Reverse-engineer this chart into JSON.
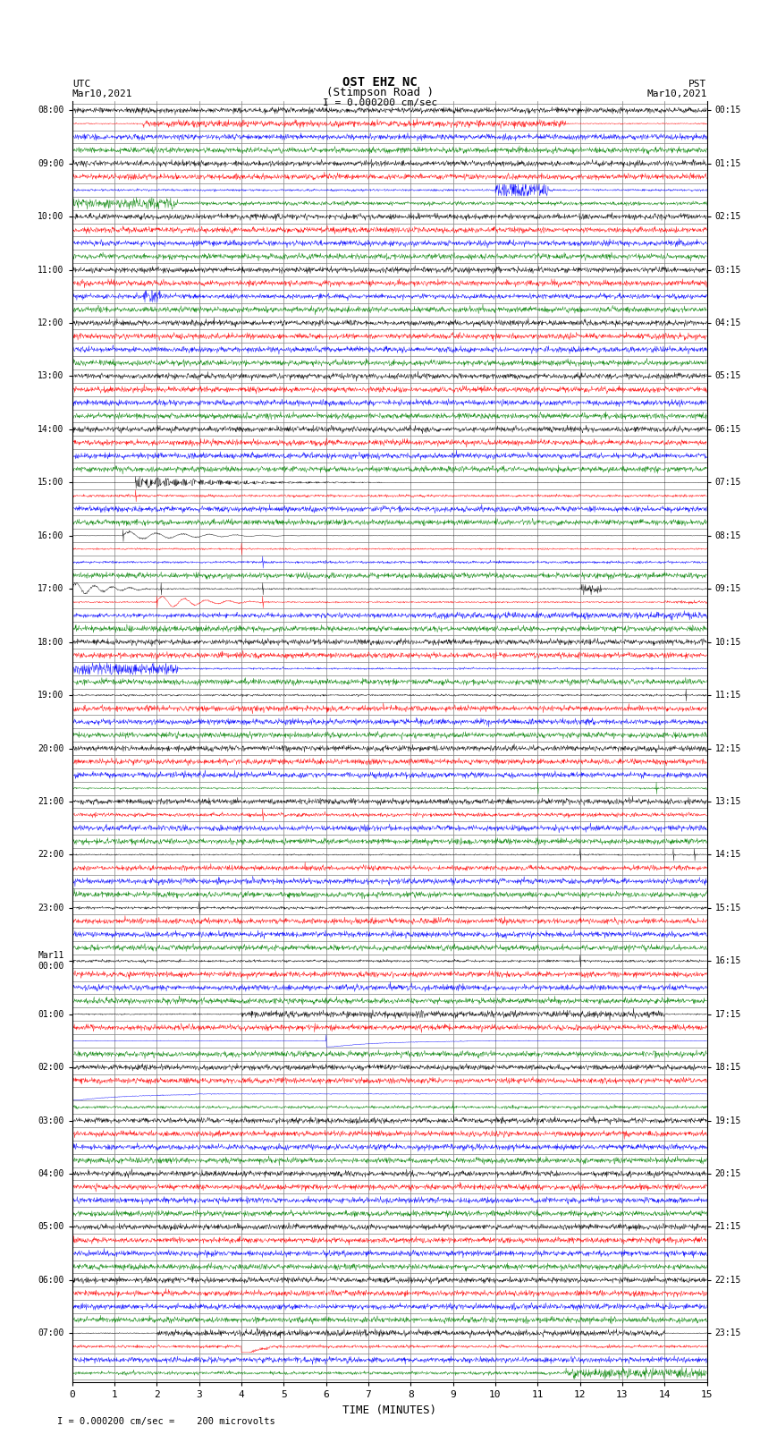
{
  "title_line1": "OST EHZ NC",
  "title_line2": "(Stimpson Road )",
  "title_line3": "I = 0.000200 cm/sec",
  "left_header_line1": "UTC",
  "left_header_line2": "Mar10,2021",
  "right_header_line1": "PST",
  "right_header_line2": "Mar10,2021",
  "xlabel": "TIME (MINUTES)",
  "footer": "I = 0.000200 cm/sec =    200 microvolts",
  "xmin": 0,
  "xmax": 15,
  "xticks": [
    0,
    1,
    2,
    3,
    4,
    5,
    6,
    7,
    8,
    9,
    10,
    11,
    12,
    13,
    14,
    15
  ],
  "num_hours": 24,
  "rows_per_hour": 4,
  "colors_cycle": [
    "black",
    "red",
    "blue",
    "green"
  ],
  "background_color": "white",
  "grid_color": "#808080",
  "noise_base": 0.008,
  "seed": 12345
}
